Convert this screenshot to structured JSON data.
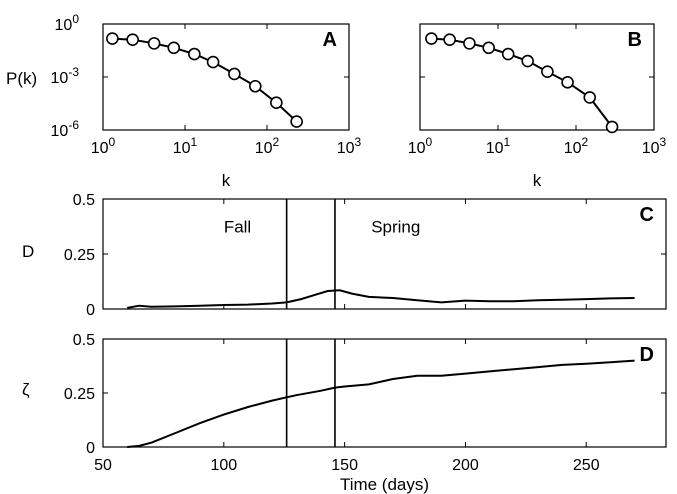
{
  "chart_data": [
    {
      "type": "line",
      "panel_label": "A",
      "log_x": true,
      "log_y": true,
      "xlim": [
        1,
        1000
      ],
      "ylim": [
        1e-06,
        1
      ],
      "x_ticks": [
        1,
        10,
        100,
        1000
      ],
      "x_tick_labels": [
        {
          "base": "10",
          "exp": "0"
        },
        {
          "base": "10",
          "exp": "1"
        },
        {
          "base": "10",
          "exp": "2"
        },
        {
          "base": "10",
          "exp": "3"
        }
      ],
      "y_ticks": [
        1,
        0.001,
        1e-06
      ],
      "y_tick_labels": [
        {
          "base": "10",
          "exp": "0"
        },
        {
          "base": "10",
          "exp": "-3"
        },
        {
          "base": "10",
          "exp": "-6"
        }
      ],
      "xlabel": "k",
      "ylabel": "P(k)",
      "marker": "open-circle",
      "series": [
        {
          "x": [
            1.3,
            2.3,
            4.2,
            7.3,
            13,
            22,
            40,
            72,
            130,
            230
          ],
          "y": [
            0.15,
            0.13,
            0.08,
            0.045,
            0.02,
            0.007,
            0.0015,
            0.0003,
            3.5e-05,
            3e-06
          ]
        }
      ]
    },
    {
      "type": "line",
      "panel_label": "B",
      "log_x": true,
      "log_y": true,
      "xlim": [
        1,
        1000
      ],
      "ylim": [
        1e-06,
        1
      ],
      "x_ticks": [
        1,
        10,
        100,
        1000
      ],
      "x_tick_labels": [
        {
          "base": "10",
          "exp": "0"
        },
        {
          "base": "10",
          "exp": "1"
        },
        {
          "base": "10",
          "exp": "2"
        },
        {
          "base": "10",
          "exp": "3"
        }
      ],
      "y_ticks": [
        1,
        0.001,
        1e-06
      ],
      "xlabel": "k",
      "marker": "open-circle",
      "series": [
        {
          "x": [
            1.4,
            2.4,
            4.3,
            7.6,
            13.5,
            24,
            43,
            78,
            150,
            290
          ],
          "y": [
            0.15,
            0.13,
            0.08,
            0.045,
            0.02,
            0.008,
            0.002,
            0.0005,
            7e-05,
            1.5e-06
          ]
        }
      ]
    },
    {
      "type": "line",
      "panel_label": "C",
      "xlim": [
        50,
        283
      ],
      "ylim": [
        0,
        0.5
      ],
      "x_ticks": [
        50,
        100,
        150,
        200,
        250
      ],
      "y_ticks": [
        0,
        0.25,
        0.5
      ],
      "y_tick_labels": [
        "0",
        "0.25",
        "0.5"
      ],
      "ylabel": "D",
      "vlines": [
        126,
        146
      ],
      "annotations": [
        {
          "text": "Fall",
          "x": 100,
          "y": 0.375
        },
        {
          "text": "Spring",
          "x": 161,
          "y": 0.375
        }
      ],
      "series": [
        {
          "x": [
            60,
            65,
            70,
            80,
            90,
            100,
            110,
            120,
            126,
            132,
            138,
            143,
            148,
            153,
            160,
            170,
            180,
            190,
            200,
            210,
            220,
            230,
            240,
            250,
            260,
            270
          ],
          "y": [
            0.005,
            0.015,
            0.01,
            0.012,
            0.015,
            0.018,
            0.02,
            0.025,
            0.03,
            0.045,
            0.065,
            0.082,
            0.085,
            0.07,
            0.055,
            0.05,
            0.04,
            0.03,
            0.038,
            0.035,
            0.035,
            0.04,
            0.042,
            0.045,
            0.048,
            0.05
          ]
        }
      ]
    },
    {
      "type": "line",
      "panel_label": "D",
      "xlim": [
        50,
        283
      ],
      "ylim": [
        0,
        0.5
      ],
      "x_ticks": [
        50,
        100,
        150,
        200,
        250
      ],
      "x_tick_labels": [
        "50",
        "100",
        "150",
        "200",
        "250"
      ],
      "y_ticks": [
        0,
        0.25,
        0.5
      ],
      "y_tick_labels": [
        "0",
        "0.25",
        "0.5"
      ],
      "xlabel": "Time (days)",
      "ylabel": "ζ",
      "vlines": [
        126,
        146
      ],
      "series": [
        {
          "x": [
            60,
            65,
            70,
            80,
            90,
            100,
            110,
            120,
            126,
            130,
            140,
            146,
            150,
            160,
            170,
            180,
            190,
            200,
            210,
            220,
            230,
            240,
            250,
            260,
            270
          ],
          "y": [
            0,
            0.005,
            0.02,
            0.065,
            0.11,
            0.15,
            0.185,
            0.215,
            0.23,
            0.24,
            0.26,
            0.275,
            0.28,
            0.29,
            0.315,
            0.33,
            0.33,
            0.34,
            0.35,
            0.36,
            0.37,
            0.38,
            0.385,
            0.392,
            0.4
          ]
        }
      ]
    }
  ]
}
